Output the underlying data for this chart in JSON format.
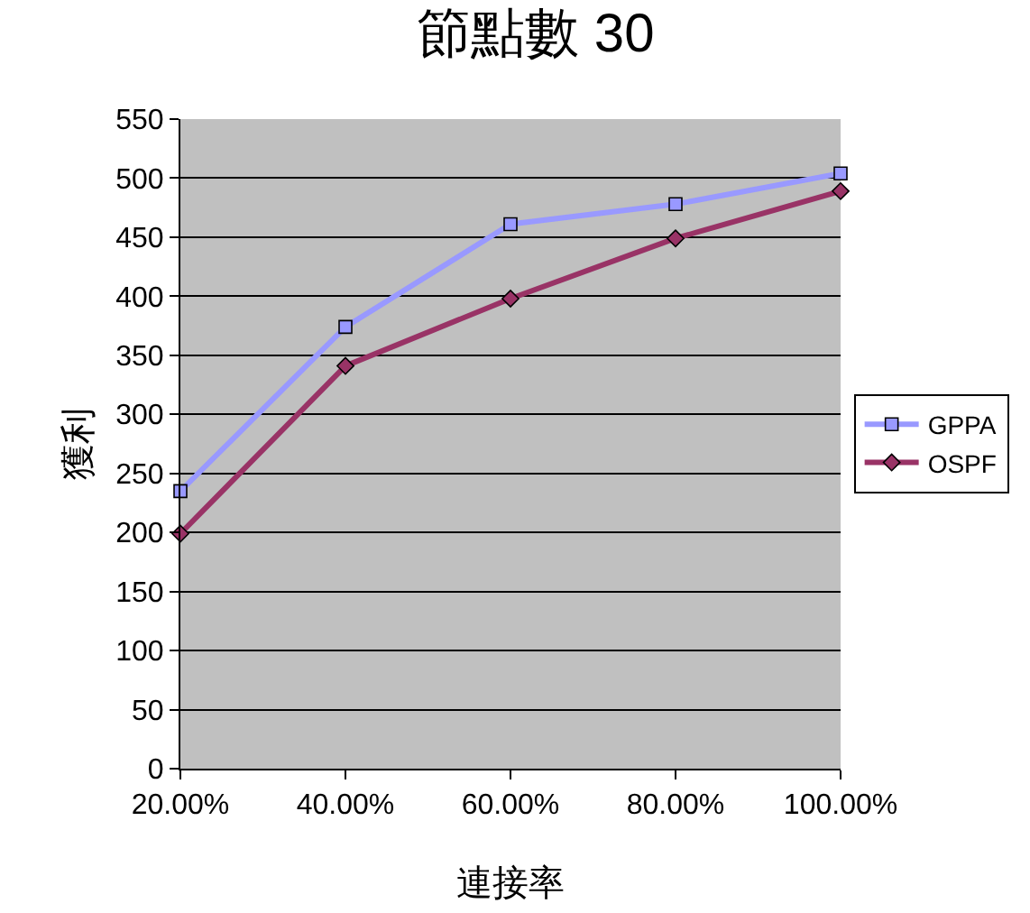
{
  "chart_data": {
    "type": "line",
    "title": "節點數 30",
    "xlabel": "連接率",
    "ylabel": "獲利",
    "categories": [
      "20.00%",
      "40.00%",
      "60.00%",
      "80.00%",
      "100.00%"
    ],
    "series": [
      {
        "name": "GPPA",
        "color": "#9999ff",
        "marker": "square",
        "values": [
          235,
          374,
          461,
          478,
          504
        ]
      },
      {
        "name": "OSPF",
        "color": "#993366",
        "marker": "diamond",
        "values": [
          199,
          341,
          398,
          449,
          489
        ]
      }
    ],
    "ylim": [
      0,
      550
    ],
    "yticks": [
      0,
      50,
      100,
      150,
      200,
      250,
      300,
      350,
      400,
      450,
      500,
      550
    ],
    "grid": "y",
    "legend": "right",
    "line_style": "solid"
  }
}
